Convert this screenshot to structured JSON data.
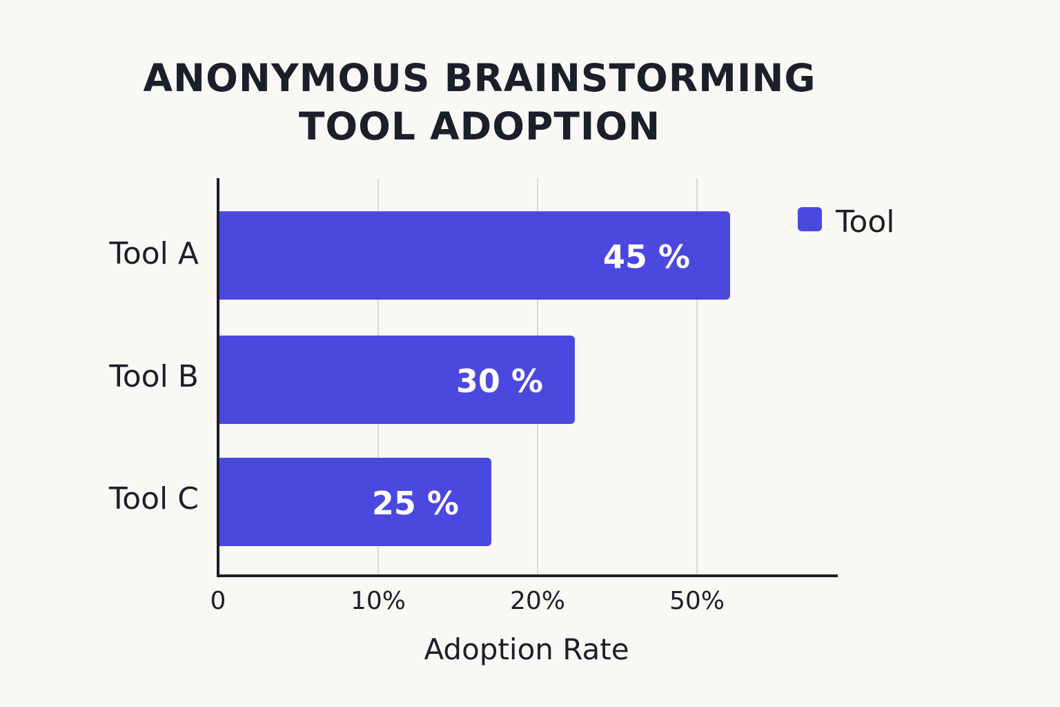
{
  "chart_data": {
    "type": "bar",
    "orientation": "horizontal",
    "title_lines": [
      "ANONYMOUS BRAINSTORMING",
      "TOOL ADOPTION"
    ],
    "xlabel": "Adoption Rate",
    "ylabel": "",
    "categories": [
      "Tool A",
      "Tool B",
      "Tool C"
    ],
    "series": [
      {
        "name": "Tool",
        "values": [
          45,
          30,
          25
        ],
        "data_labels": [
          "45 %",
          "30 %",
          "25 %"
        ]
      }
    ],
    "x_ticks": [
      "0",
      "10%",
      "20%",
      "50%"
    ],
    "legend": {
      "entries": [
        "Tool"
      ],
      "placement": "top-right"
    },
    "grid": {
      "vertical": true,
      "horizontal": false
    },
    "colors": {
      "bar": "#4b48e0",
      "grid": "#d9d9d9",
      "axis": "#1b1f2a",
      "text": "#1b1f2a",
      "background": "#f9f8f5"
    }
  }
}
